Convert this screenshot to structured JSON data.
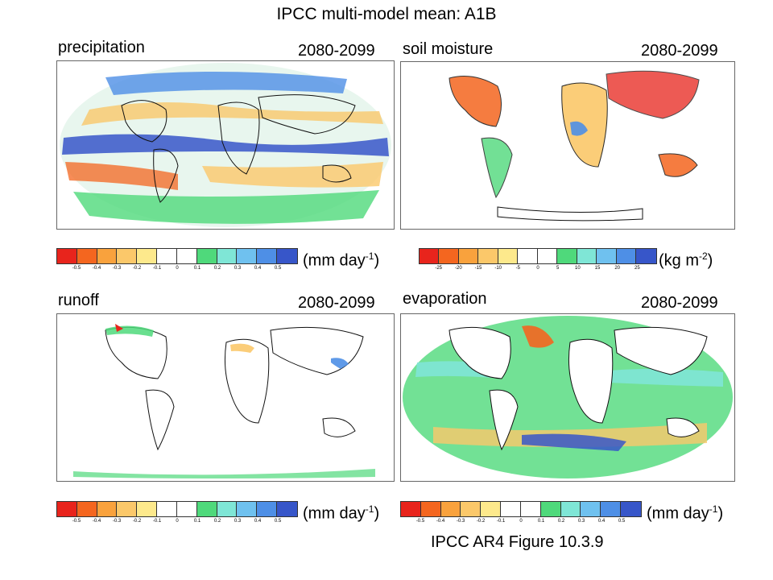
{
  "title": "IPCC multi-model mean: A1B",
  "caption": "IPCC AR4 Figure 10.3.9",
  "panels": [
    {
      "id": "precipitation",
      "title": "precipitation",
      "period": "2080-2099",
      "scale": {
        "unit_base": "(mm day",
        "unit_sup": "-1",
        "unit_tail": ")",
        "ticks": [
          "-0.5",
          "-0.4",
          "-0.3",
          "-0.2",
          "-0.1",
          "0",
          "0.1",
          "0.2",
          "0.3",
          "0.4",
          "0.5"
        ]
      }
    },
    {
      "id": "soil-moisture",
      "title": "soil moisture",
      "period": "2080-2099",
      "scale": {
        "unit_base": "(kg m",
        "unit_sup": "-2",
        "unit_tail": ")",
        "ticks": [
          "-25",
          "-20",
          "-15",
          "-10",
          "-5",
          "0",
          "5",
          "10",
          "15",
          "20",
          "25"
        ]
      }
    },
    {
      "id": "runoff",
      "title": "runoff",
      "period": "2080-2099",
      "scale": {
        "unit_base": "(mm day",
        "unit_sup": "-1",
        "unit_tail": ")",
        "ticks": [
          "-0.5",
          "-0.4",
          "-0.3",
          "-0.2",
          "-0.1",
          "0",
          "0.1",
          "0.2",
          "0.3",
          "0.4",
          "0.5"
        ]
      }
    },
    {
      "id": "evaporation",
      "title": "evaporation",
      "period": "2080-2099",
      "scale": {
        "unit_base": "(mm day",
        "unit_sup": "-1",
        "unit_tail": ")",
        "ticks": [
          "-0.5",
          "-0.4",
          "-0.3",
          "-0.2",
          "-0.1",
          "0",
          "0.1",
          "0.2",
          "0.3",
          "0.4",
          "0.5"
        ]
      }
    }
  ],
  "palette": [
    "#e8241c",
    "#f4661f",
    "#f9a23d",
    "#fbc86a",
    "#fde98c",
    "#ffffff",
    "#ffffff",
    "#4fd97b",
    "#7fe6d6",
    "#6fc1ef",
    "#4e8fe6",
    "#3756c9"
  ],
  "colors": {
    "land_outline": "#111111",
    "ocean_default": "#ffffff",
    "stipple": "#000000"
  }
}
